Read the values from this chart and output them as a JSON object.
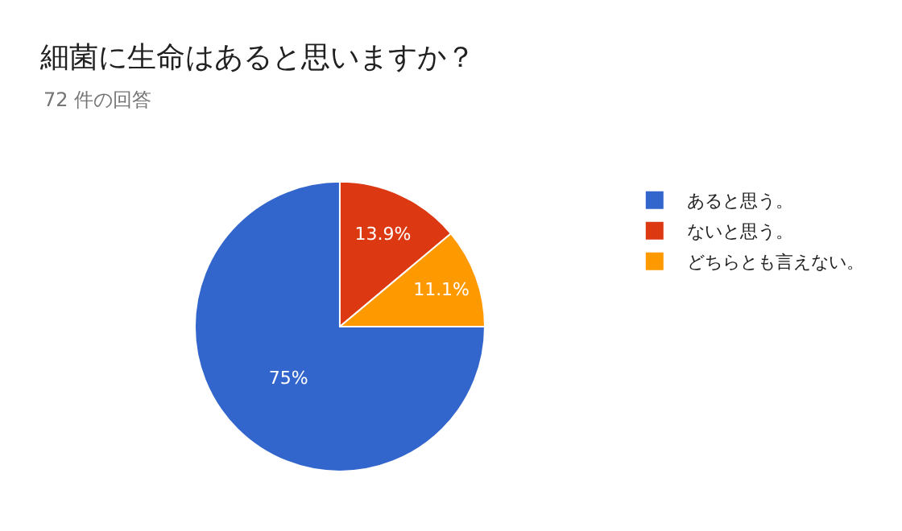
{
  "chart_data": {
    "type": "pie",
    "title": "細菌に生命はあると思いますか？",
    "subtitle": "72 件の回答",
    "categories": [
      "あると思う。",
      "ないと思う。",
      "どちらとも言えない。"
    ],
    "values": [
      75,
      13.9,
      11.1
    ],
    "colors": [
      "#3366cc",
      "#dc3912",
      "#ff9900"
    ],
    "value_labels": [
      "75%",
      "13.9%",
      "11.1%"
    ],
    "legend": "right"
  }
}
